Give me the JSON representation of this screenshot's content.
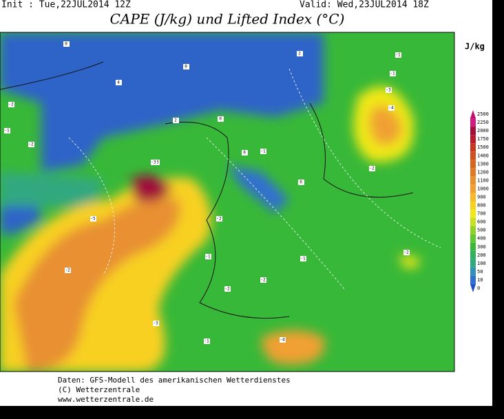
{
  "header": {
    "init": "Init : Tue,22JUL2014 12Z",
    "valid": "Valid: Wed,23JUL2014 18Z",
    "title": "CAPE (J/kg) und Lifted Index (°C)"
  },
  "legend": {
    "unit": "J/kg",
    "levels": [
      {
        "value": 2500,
        "color": "#c0106a"
      },
      {
        "value": 2250,
        "color": "#d01c80"
      },
      {
        "value": 2000,
        "color": "#a0103a"
      },
      {
        "value": 1750,
        "color": "#b81c30"
      },
      {
        "value": 1500,
        "color": "#c83820"
      },
      {
        "value": 1400,
        "color": "#d05020"
      },
      {
        "value": 1300,
        "color": "#d86420"
      },
      {
        "value": 1200,
        "color": "#e07828"
      },
      {
        "value": 1100,
        "color": "#e89030"
      },
      {
        "value": 1000,
        "color": "#f0a030"
      },
      {
        "value": 900,
        "color": "#f8b828"
      },
      {
        "value": 800,
        "color": "#f8d020"
      },
      {
        "value": 700,
        "color": "#f0e818"
      },
      {
        "value": 600,
        "color": "#c8e020"
      },
      {
        "value": 500,
        "color": "#90d028"
      },
      {
        "value": 400,
        "color": "#60c830"
      },
      {
        "value": 300,
        "color": "#38b838"
      },
      {
        "value": 200,
        "color": "#30b060"
      },
      {
        "value": 100,
        "color": "#30a880"
      },
      {
        "value": 50,
        "color": "#3090b8"
      },
      {
        "value": 10,
        "color": "#3070d0"
      },
      {
        "value": 0,
        "color": "#2050c8"
      }
    ]
  },
  "map": {
    "contour_labels": [
      0,
      4,
      0,
      0,
      -1,
      -2,
      -1,
      2,
      2,
      -1,
      -3,
      -2,
      -3,
      -4,
      -2,
      0,
      -1,
      0,
      -5,
      -3,
      -2,
      -1,
      -2,
      -2,
      -3,
      -4,
      -2,
      -1,
      -2,
      -1
    ]
  },
  "footer": {
    "line1": "Daten: GFS-Modell des amerikanischen Wetterdienstes",
    "line2": "(C) Wetterzentrale",
    "line3": "www.wetterzentrale.de"
  }
}
